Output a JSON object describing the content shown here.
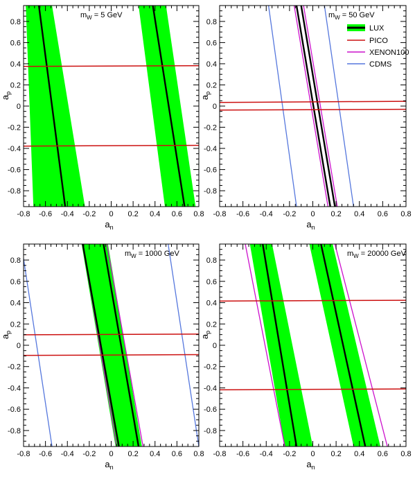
{
  "colors": {
    "LUX_band": "#00ff00",
    "LUX_line": "#000000",
    "PICO": "#cc1010",
    "XENON100": "#cc10cc",
    "CDMS": "#5577dd",
    "frame": "#000000"
  },
  "legend": {
    "panel": 1,
    "entries": [
      {
        "name": "LUX",
        "style": "band"
      },
      {
        "name": "PICO",
        "style": "line"
      },
      {
        "name": "XENON100",
        "style": "line"
      },
      {
        "name": "CDMS",
        "style": "line"
      }
    ]
  },
  "chart_data": [
    {
      "type": "line",
      "title_main": "m",
      "title_sub": "W",
      "title_rest": " = 5 GeV",
      "xlabel_main": "a",
      "xlabel_sub": "n",
      "ylabel_main": "a",
      "ylabel_sub": "p",
      "xlim": [
        -0.8,
        0.8
      ],
      "ylim": [
        -0.95,
        0.95
      ],
      "xticks": [
        -0.8,
        -0.6,
        -0.4,
        -0.2,
        0,
        0.2,
        0.4,
        0.6,
        0.8
      ],
      "xtick_labels": [
        "-0.8",
        "-0.6",
        "-0.4",
        "-0.2",
        "0",
        "0.2",
        "0.4",
        "0.6",
        "0.8"
      ],
      "yticks": [
        -0.8,
        -0.6,
        -0.4,
        -0.2,
        0,
        0.2,
        0.4,
        0.6,
        0.8
      ],
      "ytick_labels": [
        "-0.8",
        "-0.6",
        "-0.4",
        "-0.2",
        "0",
        "0.2",
        "0.4",
        "0.6",
        "0.8"
      ],
      "bands": [
        {
          "name": "LUX",
          "polygon": [
            [
              -0.78,
              0.95
            ],
            [
              -0.54,
              0.95
            ],
            [
              -0.24,
              -0.95
            ],
            [
              -0.71,
              -0.95
            ]
          ]
        },
        {
          "name": "LUX",
          "polygon": [
            [
              0.25,
              0.95
            ],
            [
              0.5,
              0.95
            ],
            [
              0.77,
              -0.95
            ],
            [
              0.49,
              -0.95
            ]
          ]
        }
      ],
      "series": [
        {
          "name": "LUX",
          "segments": [
            [
              [
                -0.66,
                0.95
              ],
              [
                -0.42,
                -0.95
              ]
            ],
            [
              [
                0.38,
                0.95
              ],
              [
                0.67,
                -0.95
              ]
            ]
          ]
        },
        {
          "name": "PICO",
          "segments": [
            [
              [
                -0.8,
                0.375
              ],
              [
                0.8,
                0.382
              ]
            ],
            [
              [
                -0.8,
                -0.378
              ],
              [
                0.8,
                -0.371
              ]
            ]
          ]
        }
      ]
    },
    {
      "type": "line",
      "title_main": "m",
      "title_sub": "W",
      "title_rest": " = 50 GeV",
      "xlabel_main": "a",
      "xlabel_sub": "n",
      "ylabel_main": "a",
      "ylabel_sub": "p",
      "xlim": [
        -0.8,
        0.8
      ],
      "ylim": [
        -0.95,
        0.95
      ],
      "xticks": [
        -0.8,
        -0.6,
        -0.4,
        -0.2,
        0,
        0.2,
        0.4,
        0.6,
        0.8
      ],
      "xtick_labels": [
        "-0.8",
        "-0.6",
        "-0.4",
        "-0.2",
        "0",
        "0.2",
        "0.4",
        "0.6",
        "0.8"
      ],
      "yticks": [
        -0.8,
        -0.6,
        -0.4,
        -0.2,
        0,
        0.2,
        0.4,
        0.6,
        0.8
      ],
      "ytick_labels": [
        "-0.8",
        "-0.6",
        "-0.4",
        "-0.2",
        "0",
        "0.2",
        "0.4",
        "0.6",
        "0.8"
      ],
      "bands": [],
      "series": [
        {
          "name": "CDMS",
          "segments": [
            [
              [
                -0.38,
                0.95
              ],
              [
                -0.14,
                -0.95
              ]
            ],
            [
              [
                0.1,
                0.95
              ],
              [
                0.35,
                -0.95
              ]
            ]
          ]
        },
        {
          "name": "XENON100",
          "segments": [
            [
              [
                -0.16,
                0.95
              ],
              [
                0.13,
                -0.95
              ]
            ],
            [
              [
                -0.08,
                0.95
              ],
              [
                0.21,
                -0.95
              ]
            ]
          ]
        },
        {
          "name": "LUX",
          "segments": [
            [
              [
                -0.14,
                0.95
              ],
              [
                0.15,
                -0.95
              ]
            ],
            [
              [
                -0.1,
                0.95
              ],
              [
                0.19,
                -0.95
              ]
            ]
          ]
        },
        {
          "name": "PICO",
          "segments": [
            [
              [
                -0.8,
                0.035
              ],
              [
                0.8,
                0.045
              ]
            ],
            [
              [
                -0.8,
                -0.038
              ],
              [
                0.8,
                -0.03
              ]
            ]
          ]
        }
      ]
    },
    {
      "type": "line",
      "title_main": "m",
      "title_sub": "W",
      "title_rest": " = 1000 GeV",
      "xlabel_main": "a",
      "xlabel_sub": "n",
      "ylabel_main": "a",
      "ylabel_sub": "p",
      "xlim": [
        -0.8,
        0.8
      ],
      "ylim": [
        -0.95,
        0.95
      ],
      "xticks": [
        -0.8,
        -0.6,
        -0.4,
        -0.2,
        0,
        0.2,
        0.4,
        0.6,
        0.8
      ],
      "xtick_labels": [
        "-0.8",
        "-0.6",
        "-0.4",
        "-0.2",
        "0",
        "0.2",
        "0.4",
        "0.6",
        "0.8"
      ],
      "yticks": [
        -0.8,
        -0.6,
        -0.4,
        -0.2,
        0,
        0.2,
        0.4,
        0.6,
        0.8
      ],
      "ytick_labels": [
        "-0.8",
        "-0.6",
        "-0.4",
        "-0.2",
        "0",
        "0.2",
        "0.4",
        "0.6",
        "0.8"
      ],
      "bands": [
        {
          "name": "LUX",
          "polygon": [
            [
              -0.27,
              0.95
            ],
            [
              -0.03,
              0.95
            ],
            [
              0.28,
              -0.95
            ],
            [
              0.04,
              -0.95
            ]
          ]
        }
      ],
      "series": [
        {
          "name": "CDMS",
          "segments": [
            [
              [
                -0.82,
                0.95
              ],
              [
                -0.54,
                -0.95
              ]
            ],
            [
              [
                0.52,
                0.95
              ],
              [
                0.8,
                -0.95
              ]
            ]
          ]
        },
        {
          "name": "XENON100",
          "segments": [
            [
              [
                -0.26,
                0.95
              ],
              [
                0.05,
                -0.95
              ]
            ],
            [
              [
                -0.04,
                0.95
              ],
              [
                0.29,
                -0.95
              ]
            ]
          ]
        },
        {
          "name": "LUX",
          "segments": [
            [
              [
                -0.26,
                0.95
              ],
              [
                0.07,
                -0.95
              ]
            ],
            [
              [
                -0.07,
                0.95
              ],
              [
                0.25,
                -0.95
              ]
            ]
          ]
        },
        {
          "name": "PICO",
          "segments": [
            [
              [
                -0.8,
                0.098
              ],
              [
                0.8,
                0.105
              ]
            ],
            [
              [
                -0.8,
                -0.095
              ],
              [
                0.8,
                -0.088
              ]
            ]
          ]
        }
      ]
    },
    {
      "type": "line",
      "title_main": "m",
      "title_sub": "W",
      "title_rest": " = 20000 GeV",
      "xlabel_main": "a",
      "xlabel_sub": "n",
      "ylabel_main": "a",
      "ylabel_sub": "p",
      "xlim": [
        -0.8,
        0.8
      ],
      "ylim": [
        -0.95,
        0.95
      ],
      "xticks": [
        -0.8,
        -0.6,
        -0.4,
        -0.2,
        0,
        0.2,
        0.4,
        0.6,
        0.8
      ],
      "xtick_labels": [
        "-0.8",
        "-0.6",
        "-0.4",
        "-0.2",
        "0",
        "0.2",
        "0.4",
        "0.6",
        "0.8"
      ],
      "yticks": [
        -0.8,
        -0.6,
        -0.4,
        -0.2,
        0,
        0.2,
        0.4,
        0.6,
        0.8
      ],
      "ytick_labels": [
        "-0.8",
        "-0.6",
        "-0.4",
        "-0.2",
        "0",
        "0.2",
        "0.4",
        "0.6",
        "0.8"
      ],
      "bands": [
        {
          "name": "LUX",
          "polygon": [
            [
              -0.54,
              0.95
            ],
            [
              -0.35,
              0.95
            ],
            [
              0.0,
              -0.95
            ],
            [
              -0.24,
              -0.95
            ]
          ]
        },
        {
          "name": "LUX",
          "polygon": [
            [
              -0.03,
              0.95
            ],
            [
              0.17,
              0.95
            ],
            [
              0.58,
              -0.95
            ],
            [
              0.35,
              -0.95
            ]
          ]
        }
      ],
      "series": [
        {
          "name": "XENON100",
          "segments": [
            [
              [
                -0.58,
                0.95
              ],
              [
                -0.24,
                -0.95
              ]
            ],
            [
              [
                0.19,
                0.95
              ],
              [
                0.64,
                -0.95
              ]
            ]
          ]
        },
        {
          "name": "LUX",
          "segments": [
            [
              [
                -0.43,
                0.95
              ],
              [
                -0.14,
                -0.95
              ]
            ],
            [
              [
                0.07,
                0.95
              ],
              [
                0.45,
                -0.95
              ]
            ]
          ]
        },
        {
          "name": "PICO",
          "segments": [
            [
              [
                -0.8,
                0.415
              ],
              [
                0.8,
                0.422
              ]
            ],
            [
              [
                -0.8,
                -0.418
              ],
              [
                0.8,
                -0.41
              ]
            ]
          ]
        }
      ]
    }
  ]
}
